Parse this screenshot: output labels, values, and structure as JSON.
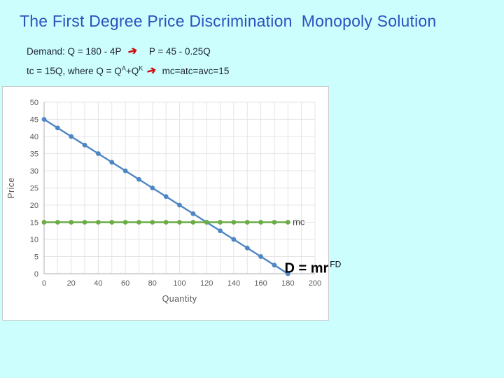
{
  "slide": {
    "title": "The First Degree Price Discrimination  Monopoly Solution",
    "line1": {
      "pre_arrow": "Demand: Q = 180 - 4P",
      "arrow": "➔",
      "post_arrow": "P = 45 - 0.25Q"
    },
    "line2": {
      "pre": "tc = 15Q, where Q = Q",
      "sup1": "A",
      "mid": "+Q",
      "sup2": "K",
      "arrow": "➔",
      "post": "mc=atc=avc=15"
    }
  },
  "colors": {
    "background": "#CCFEFE",
    "title_blue": "#2B51BE",
    "body_text": "#1D2233",
    "arrow_red": "#CC1010",
    "demand_blue": "#4E86C4",
    "mc_green": "#6BAC47",
    "gridline": "#E4E4E4",
    "axis_line": "#BCBCBC",
    "tick_text": "#595959"
  },
  "chart_data": {
    "type": "line",
    "title": "",
    "xlabel": "Quantity",
    "ylabel": "Price",
    "xlim": [
      0,
      200
    ],
    "ylim": [
      0,
      50
    ],
    "x_ticks": [
      0,
      20,
      40,
      60,
      80,
      100,
      120,
      140,
      160,
      180,
      200
    ],
    "y_ticks": [
      0,
      5,
      10,
      15,
      20,
      25,
      30,
      35,
      40,
      45,
      50
    ],
    "x_grid_step": 10,
    "y_grid_step": 5,
    "grid": true,
    "legend": "none",
    "series": [
      {
        "name": "demand",
        "label": "D = mr^FD",
        "color": "#4E86C4",
        "x": [
          0,
          10,
          20,
          30,
          40,
          50,
          60,
          70,
          80,
          90,
          100,
          110,
          120,
          130,
          140,
          150,
          160,
          170,
          180
        ],
        "y": [
          45,
          42.5,
          40,
          37.5,
          35,
          32.5,
          30,
          27.5,
          25,
          22.5,
          20,
          17.5,
          15,
          12.5,
          10,
          7.5,
          5,
          2.5,
          0
        ]
      },
      {
        "name": "mc",
        "label": "mc",
        "color": "#6BAC47",
        "x": [
          0,
          10,
          20,
          30,
          40,
          50,
          60,
          70,
          80,
          90,
          100,
          110,
          120,
          130,
          140,
          150,
          160,
          170,
          180
        ],
        "y": [
          15,
          15,
          15,
          15,
          15,
          15,
          15,
          15,
          15,
          15,
          15,
          15,
          15,
          15,
          15,
          15,
          15,
          15,
          15
        ]
      }
    ],
    "annotations": [
      {
        "name": "mc",
        "text": "mc",
        "x": 183.5,
        "y": 14.2
      },
      {
        "name": "demand",
        "text": "D = mr",
        "sup": "FD",
        "x": 177.5,
        "y": 0.3
      }
    ]
  }
}
